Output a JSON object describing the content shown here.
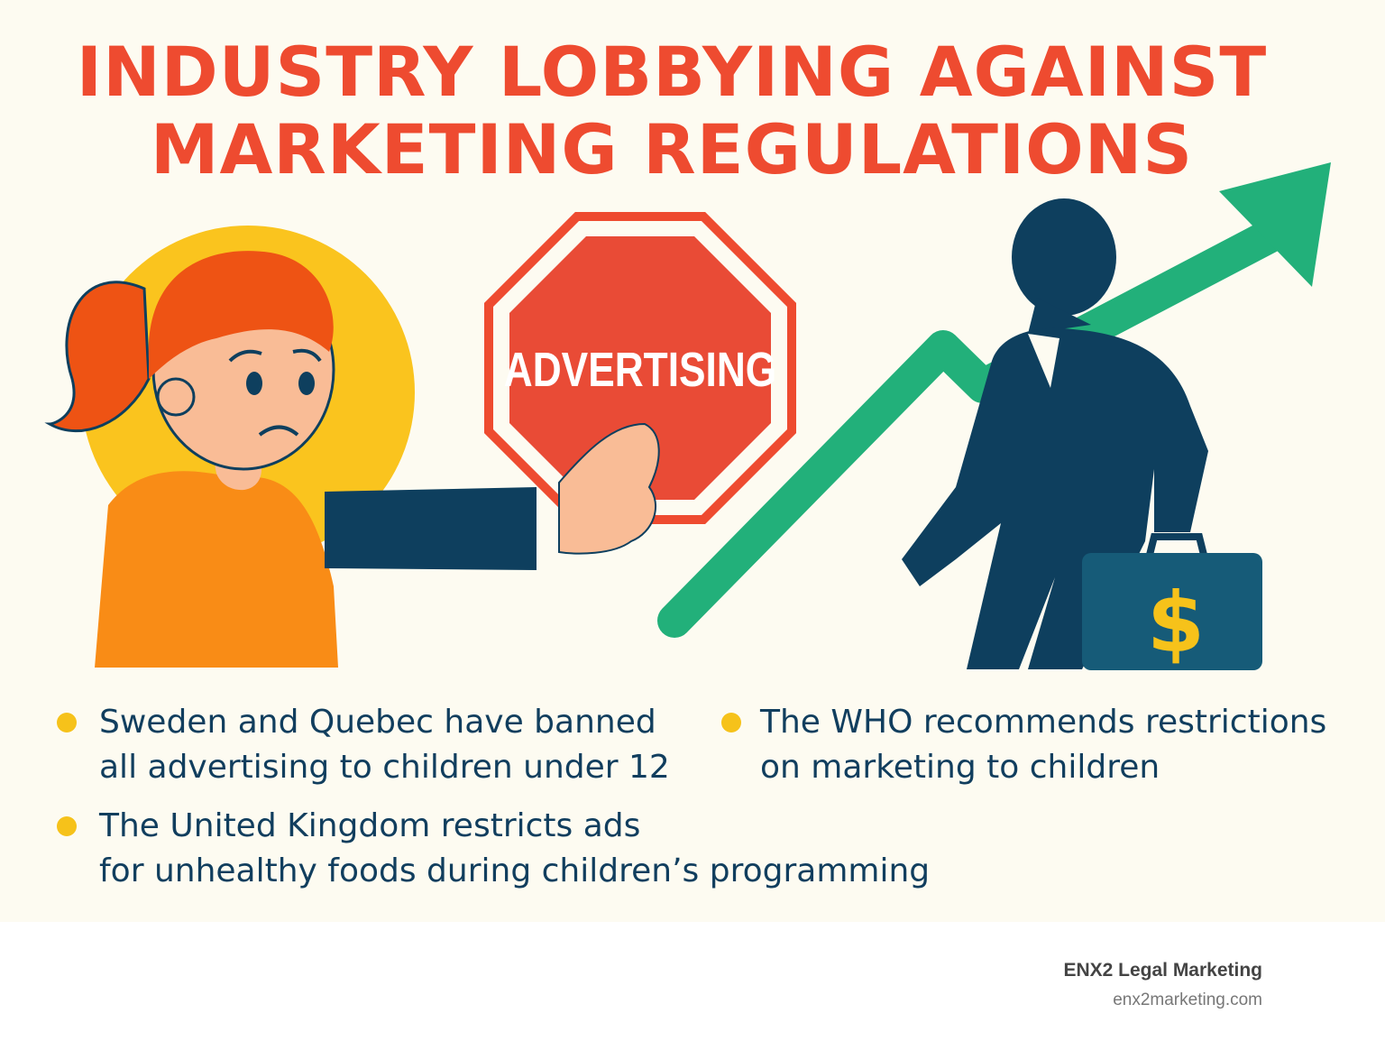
{
  "title": {
    "line1": "INDUSTRY LOBBYING AGAINST",
    "line2": "MARKETING REGULATIONS"
  },
  "sign": {
    "label": "ADVERTISING"
  },
  "briefcase": {
    "symbol": "$"
  },
  "bullets": [
    {
      "line1": "Sweden and Quebec have banned",
      "line2": "all advertising to children under 12"
    },
    {
      "line1": "The WHO recommends restrictions",
      "line2": "on marketing to children"
    },
    {
      "line1": "The United Kingdom restricts ads",
      "line2": "for unhealthy foods during children’s programming"
    }
  ],
  "footer": {
    "brand": "ENX2 Legal Marketing",
    "url": "enx2marketing.com"
  },
  "colors": {
    "title": "#EE4B30",
    "text": "#113E5E",
    "bullet": "#F6C21A",
    "arrow": "#22B07A",
    "navy": "#0E3F5E"
  }
}
